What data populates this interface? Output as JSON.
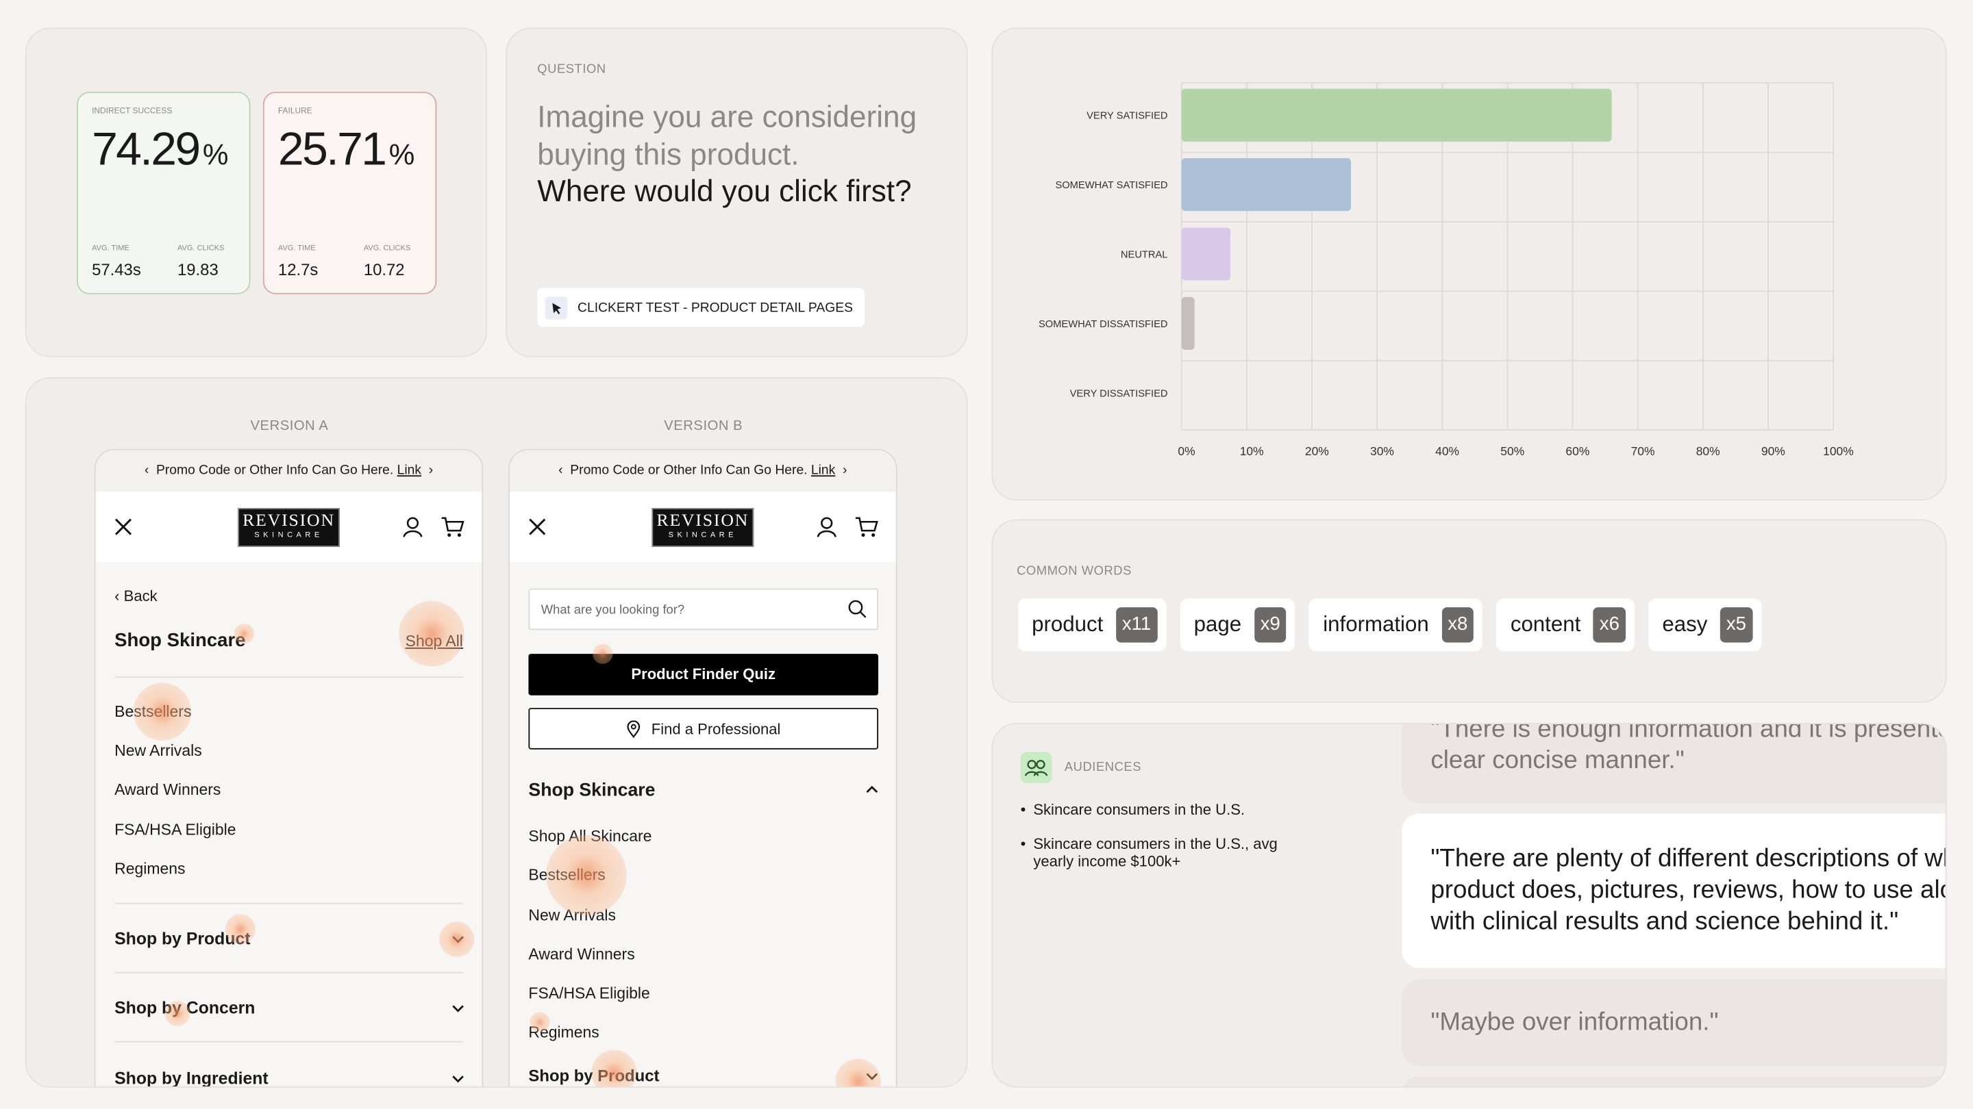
{
  "metrics": [
    {
      "label": "INDIRECT SUCCESS",
      "value": "74.29",
      "unit": "%",
      "stats": [
        {
          "label": "AVG. TIME",
          "value": "57.43s"
        },
        {
          "label": "AVG. CLICKS",
          "value": "19.83"
        }
      ]
    },
    {
      "label": "FAILURE",
      "value": "25.71",
      "unit": "%",
      "stats": [
        {
          "label": "AVG. TIME",
          "value": "12.7s"
        },
        {
          "label": "AVG. CLICKS",
          "value": "10.72"
        }
      ]
    }
  ],
  "question": {
    "label": "QUESTION",
    "prompt": "Imagine you are considering buying this product.",
    "ask": "Where would you click first?",
    "test": "CLICKERT TEST - PRODUCT DETAIL PAGES"
  },
  "chart_data": {
    "type": "hbar",
    "categories": [
      "VERY SATISFIED",
      "SOMEWHAT SATISFIED",
      "NEUTRAL",
      "SOMEWHAT DISSATISFIED",
      "VERY DISSATISFIED"
    ],
    "values": [
      66,
      26,
      7.5,
      2,
      0
    ],
    "colors": [
      "#b3d4a6",
      "#aec0d8",
      "#d8c8ea",
      "#c4bfbe",
      "#e2b3ad"
    ],
    "xlim": [
      0,
      100
    ],
    "xticks": [
      {
        "value": 0,
        "label": "0%"
      },
      {
        "value": 10,
        "label": "10%"
      },
      {
        "value": 20,
        "label": "20%"
      },
      {
        "value": 30,
        "label": "30%"
      },
      {
        "value": 40,
        "label": "40%"
      },
      {
        "value": 50,
        "label": "50%"
      },
      {
        "value": 60,
        "label": "60%"
      },
      {
        "value": 70,
        "label": "70%"
      },
      {
        "value": 80,
        "label": "80%"
      },
      {
        "value": 90,
        "label": "90%"
      },
      {
        "value": 100,
        "label": "100%"
      }
    ],
    "grid": true
  },
  "common_words": {
    "label": "COMMON WORDS",
    "words": [
      {
        "word": "product",
        "count": "x11"
      },
      {
        "word": "page",
        "count": "x9"
      },
      {
        "word": "information",
        "count": "x8"
      },
      {
        "word": "content",
        "count": "x6"
      },
      {
        "word": "easy",
        "count": "x5"
      }
    ]
  },
  "audiences": {
    "label": "AUDIENCES",
    "items": [
      "Skincare consumers in the U.S.",
      "Skincare consumers in the U.S., avg yearly income $100k+"
    ]
  },
  "quotes": [
    "\"There is enough information and it is presented in a clear concise manner.\"",
    "\"There are plenty of different descriptions of what product does, pictures, reviews, how to use along with clinical results and science behind it.\"",
    "\"Maybe over information.\""
  ],
  "versions": [
    {
      "label": "VERSION A",
      "promo": "Promo Code or Other Info Can Go Here.",
      "link": "Link",
      "logo_top": "REVISION",
      "logo_bottom": "SKINCARE",
      "back": "Back",
      "section": "Shop Skincare",
      "shop_all": "Shop All",
      "items": [
        "Bestsellers",
        "New Arrivals",
        "Award Winners",
        "FSA/HSA Eligible",
        "Regimens"
      ],
      "groups": [
        "Shop by Product",
        "Shop by Concern",
        "Shop by Ingredient"
      ]
    },
    {
      "label": "VERSION B",
      "promo": "Promo Code or Other Info Can Go Here.",
      "link": "Link",
      "logo_top": "REVISION",
      "logo_bottom": "SKINCARE",
      "search": "What are you looking for?",
      "quiz": "Product Finder Quiz",
      "professional": "Find a Professional",
      "section": "Shop Skincare",
      "items": [
        "Shop All Skincare",
        "Bestsellers",
        "New Arrivals",
        "Award Winners",
        "FSA/HSA Eligible",
        "Regimens"
      ],
      "groups": [
        "Shop by Product"
      ]
    }
  ]
}
